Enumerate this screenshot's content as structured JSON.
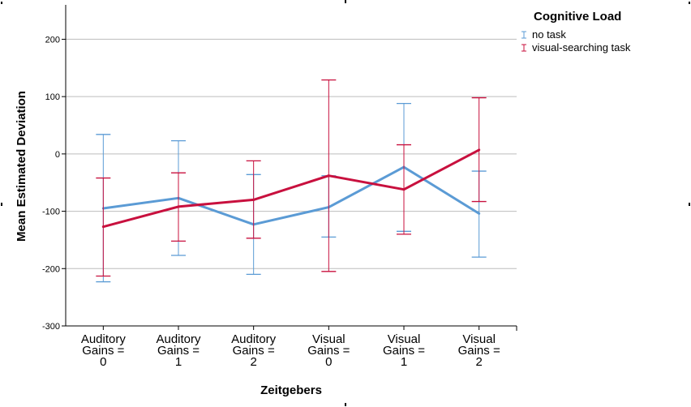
{
  "chart_data": {
    "type": "line",
    "xlabel": "Zeitgebers",
    "ylabel": "Mean Estimated Deviation",
    "ylim": [
      -300,
      260
    ],
    "yticks": [
      -300,
      -200,
      -100,
      0,
      100,
      200
    ],
    "grid": "horizontal",
    "categories": [
      [
        "Auditory",
        "Gains =",
        "0"
      ],
      [
        "Auditory",
        "Gains =",
        "1"
      ],
      [
        "Auditory",
        "Gains =",
        "2"
      ],
      [
        "Visual",
        "Gains =",
        "0"
      ],
      [
        "Visual",
        "Gains =",
        "1"
      ],
      [
        "Visual",
        "Gains =",
        "2"
      ]
    ],
    "legend": {
      "title": "Cognitive Load",
      "position": "top-right"
    },
    "series": [
      {
        "name": "no task",
        "color": "#5b9bd5",
        "values": [
          -95,
          -77,
          -123,
          -93,
          -23,
          -104
        ],
        "error_low": [
          -223,
          -177,
          -210,
          -145,
          -135,
          -180
        ],
        "error_high": [
          34,
          23,
          -36,
          -38,
          88,
          -30
        ]
      },
      {
        "name": "visual-searching task",
        "color": "#c8103e",
        "values": [
          -127,
          -92,
          -80,
          -38,
          -62,
          7
        ],
        "error_low": [
          -213,
          -152,
          -147,
          -205,
          -140,
          -83
        ],
        "error_high": [
          -42,
          -33,
          -12,
          129,
          16,
          98
        ]
      }
    ]
  }
}
